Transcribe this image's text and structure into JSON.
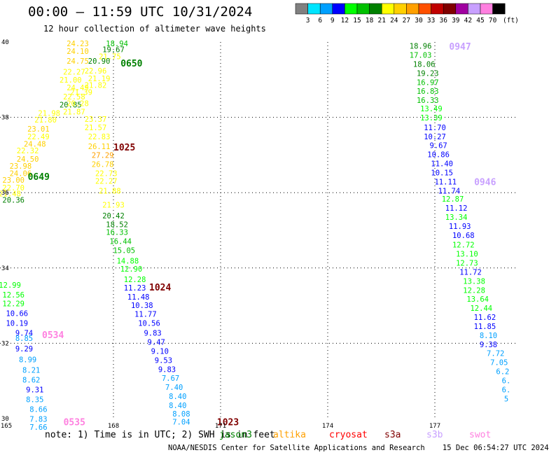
{
  "header": {
    "title": "00:00 – 11:59 UTC 10/31/2024",
    "subtitle": "12 hour collection of altimeter wave heights"
  },
  "legend": {
    "unit": "(ft)",
    "bins": [
      {
        "label": "3",
        "color": "#808080"
      },
      {
        "label": "6",
        "color": "#00e5ff"
      },
      {
        "label": "9",
        "color": "#00a0ff"
      },
      {
        "label": "12",
        "color": "#0000ff"
      },
      {
        "label": "15",
        "color": "#00ff00"
      },
      {
        "label": "18",
        "color": "#00c000"
      },
      {
        "label": "21",
        "color": "#008000"
      },
      {
        "label": "24",
        "color": "#ffff00"
      },
      {
        "label": "27",
        "color": "#ffd000"
      },
      {
        "label": "30",
        "color": "#ffa000"
      },
      {
        "label": "33",
        "color": "#ff5000"
      },
      {
        "label": "36",
        "color": "#c00000"
      },
      {
        "label": "39",
        "color": "#800000"
      },
      {
        "label": "42",
        "color": "#a000a0"
      },
      {
        "label": "45",
        "color": "#c8a0ff"
      },
      {
        "label": "70",
        "color": "#ff80e0"
      },
      {
        "label": "",
        "color": "#000000"
      }
    ]
  },
  "axes": {
    "x_ticks": [
      "165",
      "168",
      "171",
      "174",
      "177"
    ],
    "y_ticks": [
      "40",
      "38",
      "36",
      "34",
      "32",
      "30"
    ],
    "x_range": [
      165,
      180
    ],
    "y_range": [
      30,
      40
    ]
  },
  "tracks": [
    {
      "id": "track-0650",
      "label": "0650",
      "label_color": "#008000",
      "points": [
        {
          "x": 167.0,
          "y": 39.89,
          "v": "24.23",
          "c": "#ffd000"
        },
        {
          "x": 168.1,
          "y": 39.89,
          "v": "18.94",
          "c": "#00c000"
        },
        {
          "x": 167.0,
          "y": 39.68,
          "v": "24.10",
          "c": "#ffd000"
        },
        {
          "x": 168.0,
          "y": 39.73,
          "v": "19.67",
          "c": "#008000"
        },
        {
          "x": 167.9,
          "y": 39.54,
          "v": "21.75",
          "c": "#ffff00"
        },
        {
          "x": 167.0,
          "y": 39.42,
          "v": "24.75",
          "c": "#ffd000"
        },
        {
          "x": 167.6,
          "y": 39.42,
          "v": "20.90",
          "c": "#008000"
        },
        {
          "x": 167.5,
          "y": 39.16,
          "v": "22.96",
          "c": "#ffff00"
        },
        {
          "x": 166.9,
          "y": 39.14,
          "v": "22.27",
          "c": "#ffff00"
        },
        {
          "x": 167.6,
          "y": 38.96,
          "v": "21.19",
          "c": "#ffff00"
        },
        {
          "x": 166.8,
          "y": 38.92,
          "v": "21.00",
          "c": "#ffff00"
        },
        {
          "x": 167.5,
          "y": 38.78,
          "v": "21.82",
          "c": "#ffff00"
        },
        {
          "x": 167.0,
          "y": 38.72,
          "v": "24.49",
          "c": "#ffff00"
        },
        {
          "x": 167.1,
          "y": 38.6,
          "v": "21.39",
          "c": "#ffff00"
        },
        {
          "x": 166.9,
          "y": 38.48,
          "v": "22.58",
          "c": "#ffff00"
        },
        {
          "x": 166.8,
          "y": 38.26,
          "v": "20.85",
          "c": "#008000"
        },
        {
          "x": 167.0,
          "y": 38.3,
          "v": "20.28",
          "c": "#ffff00"
        }
      ]
    },
    {
      "id": "track-0649",
      "label": "0649",
      "label_color": "#008000",
      "points": [
        {
          "x": 166.9,
          "y": 38.08,
          "v": "21.87",
          "c": "#ffff00"
        },
        {
          "x": 166.2,
          "y": 38.04,
          "v": "21.98",
          "c": "#ffff00"
        },
        {
          "x": 166.1,
          "y": 37.86,
          "v": "21.80",
          "c": "#ffff00"
        },
        {
          "x": 165.9,
          "y": 37.62,
          "v": "23.01",
          "c": "#ffd000"
        },
        {
          "x": 165.9,
          "y": 37.42,
          "v": "22.49",
          "c": "#ffff00"
        },
        {
          "x": 165.8,
          "y": 37.22,
          "v": "24.48",
          "c": "#ffd000"
        },
        {
          "x": 165.6,
          "y": 37.04,
          "v": "22.32",
          "c": "#ffff00"
        },
        {
          "x": 165.6,
          "y": 36.82,
          "v": "24.50",
          "c": "#ffd000"
        },
        {
          "x": 165.4,
          "y": 36.64,
          "v": "23.98",
          "c": "#ffd000"
        },
        {
          "x": 165.4,
          "y": 36.44,
          "v": "24.06",
          "c": "#ffd000"
        },
        {
          "x": 165.2,
          "y": 36.26,
          "v": "23.00",
          "c": "#ffd000"
        },
        {
          "x": 165.2,
          "y": 36.06,
          "v": "22.70",
          "c": "#ffff00"
        },
        {
          "x": 165.1,
          "y": 35.9,
          "v": "21.48",
          "c": "#ffff00"
        },
        {
          "x": 165.2,
          "y": 35.73,
          "v": "20.36",
          "c": "#008000"
        }
      ]
    },
    {
      "id": "track-1025",
      "label": "1025",
      "label_color": "#800000",
      "points": [
        {
          "x": 167.5,
          "y": 37.88,
          "v": "23.37",
          "c": "#ffff00"
        },
        {
          "x": 167.5,
          "y": 37.66,
          "v": "21.57",
          "c": "#ffff00"
        },
        {
          "x": 167.6,
          "y": 37.42,
          "v": "22.83",
          "c": "#ffff00"
        },
        {
          "x": 167.6,
          "y": 37.16,
          "v": "26.11",
          "c": "#ffd000"
        },
        {
          "x": 167.7,
          "y": 36.92,
          "v": "27.29",
          "c": "#ffa000"
        },
        {
          "x": 167.7,
          "y": 36.68,
          "v": "26.78",
          "c": "#ffd000"
        },
        {
          "x": 167.8,
          "y": 36.44,
          "v": "22.73",
          "c": "#ffff00"
        },
        {
          "x": 167.8,
          "y": 36.24,
          "v": "22.27",
          "c": "#ffff00"
        },
        {
          "x": 167.9,
          "y": 35.98,
          "v": "21.88",
          "c": "#ffff00"
        },
        {
          "x": 168.0,
          "y": 35.6,
          "v": "21.93",
          "c": "#ffff00"
        },
        {
          "x": 168.0,
          "y": 35.32,
          "v": "20.42",
          "c": "#008000"
        },
        {
          "x": 168.1,
          "y": 35.08,
          "v": "18.52",
          "c": "#008000"
        },
        {
          "x": 168.1,
          "y": 34.88,
          "v": "16.33",
          "c": "#00c000"
        },
        {
          "x": 168.2,
          "y": 34.64,
          "v": "16.44",
          "c": "#00c000"
        },
        {
          "x": 168.3,
          "y": 34.4,
          "v": "15.05",
          "c": "#00c000"
        },
        {
          "x": 168.4,
          "y": 34.12,
          "v": "14.88",
          "c": "#00ff00"
        },
        {
          "x": 168.5,
          "y": 33.9,
          "v": "12.90",
          "c": "#00ff00"
        },
        {
          "x": 168.6,
          "y": 33.62,
          "v": "12.28",
          "c": "#00ff00"
        }
      ]
    },
    {
      "id": "track-1024",
      "label": "1024",
      "label_color": "#800000",
      "points": [
        {
          "x": 168.6,
          "y": 33.4,
          "v": "11.23",
          "c": "#0000ff"
        },
        {
          "x": 168.7,
          "y": 33.16,
          "v": "11.48",
          "c": "#0000ff"
        },
        {
          "x": 168.8,
          "y": 32.94,
          "v": "10.38",
          "c": "#0000ff"
        },
        {
          "x": 168.9,
          "y": 32.7,
          "v": "11.77",
          "c": "#0000ff"
        },
        {
          "x": 169.0,
          "y": 32.46,
          "v": "10.56",
          "c": "#0000ff"
        },
        {
          "x": 169.1,
          "y": 32.2,
          "v": "9.83",
          "c": "#0000ff"
        },
        {
          "x": 169.2,
          "y": 31.96,
          "v": "9.47",
          "c": "#0000ff"
        },
        {
          "x": 169.3,
          "y": 31.72,
          "v": "9.10",
          "c": "#0000ff"
        },
        {
          "x": 169.4,
          "y": 31.48,
          "v": "9.53",
          "c": "#0000ff"
        },
        {
          "x": 169.5,
          "y": 31.24,
          "v": "9.83",
          "c": "#0000ff"
        },
        {
          "x": 169.6,
          "y": 31.0,
          "v": "7.67",
          "c": "#00a0ff"
        },
        {
          "x": 169.7,
          "y": 30.76,
          "v": "7.40",
          "c": "#00a0ff"
        },
        {
          "x": 169.8,
          "y": 30.52,
          "v": "8.40",
          "c": "#00a0ff"
        },
        {
          "x": 169.8,
          "y": 30.28,
          "v": "8.40",
          "c": "#00a0ff"
        }
      ]
    },
    {
      "id": "track-1023",
      "label": "1023",
      "label_color": "#800000",
      "points": [
        {
          "x": 169.9,
          "y": 30.06,
          "v": "8.08",
          "c": "#00a0ff"
        },
        {
          "x": 169.9,
          "y": 29.84,
          "v": "7.04",
          "c": "#00a0ff"
        }
      ]
    },
    {
      "id": "track-0534",
      "label": "0534",
      "label_color": "#ff80e0",
      "points": [
        {
          "x": 165.1,
          "y": 33.48,
          "v": "12.99",
          "c": "#00ff00"
        },
        {
          "x": 165.2,
          "y": 33.22,
          "v": "12.56",
          "c": "#00ff00"
        },
        {
          "x": 165.2,
          "y": 32.98,
          "v": "12.29",
          "c": "#00ff00"
        },
        {
          "x": 165.3,
          "y": 32.72,
          "v": "10.66",
          "c": "#0000ff"
        },
        {
          "x": 165.3,
          "y": 32.46,
          "v": "10.19",
          "c": "#0000ff"
        },
        {
          "x": 165.5,
          "y": 32.2,
          "v": "9.74",
          "c": "#0000ff"
        },
        {
          "x": 165.5,
          "y": 32.06,
          "v": "8.85",
          "c": "#00a0ff"
        },
        {
          "x": 165.5,
          "y": 31.78,
          "v": "9.29",
          "c": "#0000ff"
        },
        {
          "x": 165.6,
          "y": 31.5,
          "v": "8.99",
          "c": "#00a0ff"
        },
        {
          "x": 165.7,
          "y": 31.22,
          "v": "8.21",
          "c": "#00a0ff"
        },
        {
          "x": 165.7,
          "y": 30.96,
          "v": "8.62",
          "c": "#00a0ff"
        },
        {
          "x": 165.8,
          "y": 30.7,
          "v": "9.31",
          "c": "#0000ff"
        },
        {
          "x": 165.8,
          "y": 30.44,
          "v": "8.35",
          "c": "#00a0ff"
        },
        {
          "x": 165.9,
          "y": 30.18,
          "v": "8.66",
          "c": "#00a0ff"
        },
        {
          "x": 165.9,
          "y": 29.92,
          "v": "7.83",
          "c": "#00a0ff"
        }
      ]
    },
    {
      "id": "track-0535",
      "label": "0535",
      "label_color": "#ff80e0",
      "points": [
        {
          "x": 165.9,
          "y": 29.7,
          "v": "7.66",
          "c": "#00a0ff"
        }
      ]
    },
    {
      "id": "track-0947",
      "label": "0947",
      "label_color": "#c8a0ff",
      "points": [
        {
          "x": 176.6,
          "y": 39.82,
          "v": "18.96",
          "c": "#008000"
        },
        {
          "x": 176.6,
          "y": 39.58,
          "v": "17.03",
          "c": "#00c000"
        },
        {
          "x": 176.7,
          "y": 39.34,
          "v": "18.06",
          "c": "#008000"
        },
        {
          "x": 176.8,
          "y": 39.1,
          "v": "19.23",
          "c": "#008000"
        },
        {
          "x": 176.8,
          "y": 38.86,
          "v": "16.97",
          "c": "#00c000"
        },
        {
          "x": 176.8,
          "y": 38.62,
          "v": "16.83",
          "c": "#00c000"
        },
        {
          "x": 176.8,
          "y": 38.38,
          "v": "16.33",
          "c": "#00c000"
        },
        {
          "x": 176.9,
          "y": 38.16,
          "v": "13.49",
          "c": "#00ff00"
        },
        {
          "x": 176.9,
          "y": 37.92,
          "v": "13.39",
          "c": "#00ff00"
        }
      ]
    },
    {
      "id": "track-0946",
      "label": "0946",
      "label_color": "#c8a0ff",
      "points": [
        {
          "x": 177.0,
          "y": 37.66,
          "v": "11.70",
          "c": "#0000ff"
        },
        {
          "x": 177.0,
          "y": 37.42,
          "v": "10.27",
          "c": "#0000ff"
        },
        {
          "x": 177.1,
          "y": 37.18,
          "v": "9.67",
          "c": "#0000ff"
        },
        {
          "x": 177.1,
          "y": 36.94,
          "v": "10.86",
          "c": "#0000ff"
        },
        {
          "x": 177.2,
          "y": 36.7,
          "v": "11.40",
          "c": "#0000ff"
        },
        {
          "x": 177.2,
          "y": 36.46,
          "v": "10.15",
          "c": "#0000ff"
        },
        {
          "x": 177.3,
          "y": 36.22,
          "v": "11.11",
          "c": "#0000ff"
        },
        {
          "x": 177.4,
          "y": 35.98,
          "v": "11.74",
          "c": "#0000ff"
        },
        {
          "x": 177.5,
          "y": 35.76,
          "v": "12.87",
          "c": "#00ff00"
        },
        {
          "x": 177.6,
          "y": 35.52,
          "v": "11.12",
          "c": "#0000ff"
        },
        {
          "x": 177.6,
          "y": 35.28,
          "v": "13.34",
          "c": "#00ff00"
        },
        {
          "x": 177.7,
          "y": 35.04,
          "v": "11.93",
          "c": "#0000ff"
        },
        {
          "x": 177.8,
          "y": 34.8,
          "v": "10.68",
          "c": "#0000ff"
        },
        {
          "x": 177.8,
          "y": 34.54,
          "v": "12.72",
          "c": "#00ff00"
        },
        {
          "x": 177.9,
          "y": 34.3,
          "v": "13.10",
          "c": "#00ff00"
        },
        {
          "x": 177.9,
          "y": 34.06,
          "v": "12.73",
          "c": "#00ff00"
        },
        {
          "x": 178.0,
          "y": 33.82,
          "v": "11.72",
          "c": "#0000ff"
        },
        {
          "x": 178.1,
          "y": 33.58,
          "v": "13.38",
          "c": "#00ff00"
        },
        {
          "x": 178.1,
          "y": 33.34,
          "v": "12.28",
          "c": "#00ff00"
        },
        {
          "x": 178.2,
          "y": 33.1,
          "v": "13.64",
          "c": "#00ff00"
        },
        {
          "x": 178.3,
          "y": 32.86,
          "v": "12.44",
          "c": "#00ff00"
        },
        {
          "x": 178.4,
          "y": 32.62,
          "v": "11.62",
          "c": "#0000ff"
        },
        {
          "x": 178.4,
          "y": 32.38,
          "v": "11.85",
          "c": "#0000ff"
        },
        {
          "x": 178.5,
          "y": 32.14,
          "v": "8.10",
          "c": "#00a0ff"
        },
        {
          "x": 178.5,
          "y": 31.9,
          "v": "9.38",
          "c": "#0000ff"
        },
        {
          "x": 178.7,
          "y": 31.66,
          "v": "7.72",
          "c": "#00a0ff"
        },
        {
          "x": 178.8,
          "y": 31.42,
          "v": "7.05",
          "c": "#00a0ff"
        },
        {
          "x": 178.9,
          "y": 31.18,
          "v": "6.2",
          "c": "#00a0ff"
        },
        {
          "x": 179.0,
          "y": 30.94,
          "v": "6.",
          "c": "#00a0ff"
        },
        {
          "x": 179.0,
          "y": 30.7,
          "v": "6.",
          "c": "#00a0ff"
        },
        {
          "x": 179.0,
          "y": 30.46,
          "v": "5",
          "c": "#00a0ff"
        },
        {
          "x": 179.1,
          "y": 30.22,
          "v": "",
          "c": "#00a0ff"
        }
      ]
    }
  ],
  "footer": {
    "note": "note:  1) Time is in UTC; 2) SWH is in feet",
    "satellites": [
      {
        "name": "jason3",
        "color": "#008000"
      },
      {
        "name": "altika",
        "color": "#ffa000"
      },
      {
        "name": "cryosat",
        "color": "#ff0000"
      },
      {
        "name": "s3a",
        "color": "#800000"
      },
      {
        "name": "s3b",
        "color": "#c8a0ff"
      },
      {
        "name": "swot",
        "color": "#ff80e0"
      }
    ],
    "credit": "NOAA/NESDIS Center for Satellite Applications and Research    15 Dec 06:54:27 UTC 2024"
  }
}
